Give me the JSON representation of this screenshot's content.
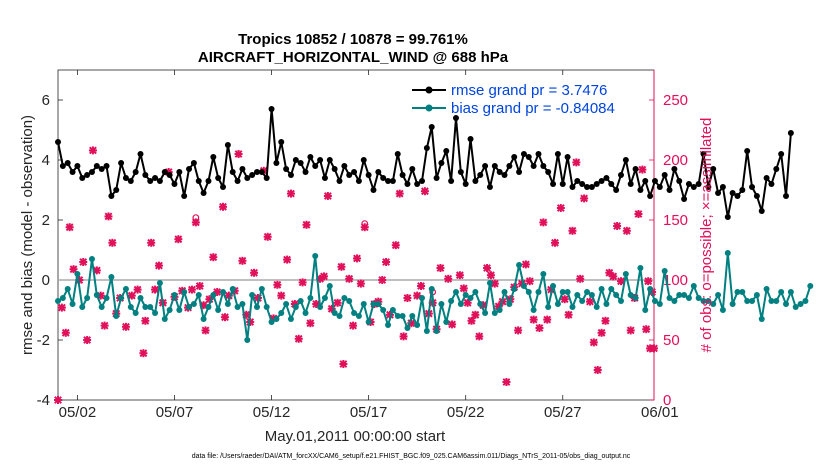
{
  "chart_data": {
    "type": "line",
    "title": "Tropics 10852 / 10878 = 99.761%",
    "subtitle": "AIRCRAFT_HORIZONTAL_WIND @ 688 hPa",
    "xlabel": "May.01,2011 00:00:00 start",
    "ylabel_left": "rmse and bias (model - observation)",
    "ylabel_right": "# of obs: o=possible; ×=assimilated",
    "xlim": [
      0.5,
      31.2
    ],
    "ylim_left": [
      -4,
      7
    ],
    "ylim_right": [
      0,
      275
    ],
    "x_ticks": [
      1.5,
      6.5,
      11.5,
      16.5,
      21.5,
      26.5,
      31.5
    ],
    "x_tick_labels": [
      "05/02",
      "05/07",
      "05/12",
      "05/17",
      "05/22",
      "05/27",
      "06/01"
    ],
    "y_ticks_left": [
      -4,
      -2,
      0,
      2,
      4,
      6
    ],
    "y_tick_labels_left": [
      "-4",
      "-2",
      "0",
      "2",
      "4",
      "6"
    ],
    "y_ticks_right": [
      0,
      50,
      100,
      150,
      200,
      250
    ],
    "y_tick_labels_right": [
      "0",
      "50",
      "100",
      "150",
      "200",
      "250"
    ],
    "footer": "data file: /Users/raeder/DAI/ATM_forcXX/CAM6_setup/f.e21.FHIST_BGC.f09_025.CAM6assim.011/Diags_NTrS_2011-05/obs_diag_output.nc",
    "series": [
      {
        "name": "rmse grand pr = 3.7476",
        "axis": "left",
        "color": "#000000",
        "x_start": 0.5,
        "x_step": 0.25,
        "values": [
          4.6,
          3.8,
          3.9,
          3.6,
          3.8,
          3.4,
          3.5,
          3.6,
          3.8,
          3.7,
          3.8,
          2.8,
          3.0,
          3.9,
          3.4,
          3.3,
          3.6,
          4.2,
          3.5,
          3.3,
          3.4,
          3.3,
          3.6,
          3.5,
          3.2,
          3.6,
          2.8,
          3.7,
          3.9,
          3.3,
          2.9,
          3.3,
          4.1,
          3.4,
          3.1,
          4.5,
          3.6,
          3.3,
          3.7,
          3.4,
          3.5,
          3.6,
          3.6,
          3.4,
          5.7,
          3.9,
          4.6,
          3.7,
          3.5,
          4.0,
          3.9,
          3.6,
          4.1,
          3.8,
          4.0,
          3.4,
          4.0,
          3.7,
          3.3,
          3.8,
          3.5,
          3.6,
          3.3,
          4.0,
          3.5,
          3.0,
          3.6,
          3.4,
          3.3,
          3.3,
          4.2,
          3.5,
          3.2,
          3.7,
          3.2,
          3.3,
          4.4,
          5.1,
          3.4,
          3.9,
          4.3,
          3.3,
          5.4,
          3.6,
          3.2,
          4.7,
          3.3,
          3.5,
          3.8,
          3.1,
          3.8,
          3.6,
          3.5,
          3.8,
          4.1,
          3.6,
          4.2,
          4.1,
          3.8,
          4.2,
          3.8,
          3.6,
          3.2,
          4.2,
          3.2,
          4.1,
          3.1,
          3.3,
          3.2,
          3.1,
          3.1,
          3.2,
          3.3,
          3.4,
          3.2,
          3.0,
          3.5,
          4.0,
          3.2,
          3.7,
          3.0,
          3.3,
          2.8,
          3.3,
          3.1,
          3.5,
          3.0,
          3.7,
          3.3,
          2.7,
          3.2,
          3.1,
          3.2,
          4.2,
          3.1,
          3.7,
          2.9,
          3.1,
          2.1,
          2.9,
          2.8,
          3.0,
          4.3,
          3.1,
          2.8,
          2.3,
          3.4,
          3.2,
          3.7,
          4.2,
          2.8,
          4.9
        ]
      },
      {
        "name": "bias grand pr = -0.84084",
        "axis": "left",
        "color": "#008080",
        "x_start": 0.5,
        "x_step": 0.25,
        "values": [
          -0.7,
          -0.6,
          -0.3,
          -0.8,
          0.2,
          -0.9,
          -0.6,
          0.7,
          -0.5,
          -0.9,
          -0.6,
          0.1,
          -1.2,
          -0.6,
          -0.3,
          -0.9,
          -1.1,
          -0.6,
          -0.9,
          -0.9,
          -1.1,
          -0.1,
          -1.3,
          -1.0,
          -0.5,
          -1.0,
          -0.4,
          -0.9,
          -0.8,
          -0.5,
          -1.3,
          -0.9,
          -0.5,
          -1.0,
          -0.4,
          -0.8,
          -0.3,
          -0.9,
          -0.8,
          -2.0,
          -0.5,
          -0.9,
          -0.3,
          -0.9,
          -1.4,
          -1.3,
          -1.1,
          -0.8,
          -1.3,
          -0.9,
          -0.7,
          -1.1,
          -0.6,
          0.8,
          -0.9,
          -0.6,
          -0.2,
          -1.1,
          -1.2,
          -0.6,
          -0.7,
          -1.1,
          -1.2,
          -0.8,
          -1.4,
          -0.8,
          -0.8,
          -1.0,
          -1.5,
          -1.0,
          -1.2,
          -1.2,
          -1.6,
          -1.2,
          -1.5,
          -0.6,
          -1.7,
          -0.3,
          -1.7,
          -0.8,
          -1.4,
          -0.7,
          -0.4,
          -0.8,
          -0.5,
          -0.6,
          -0.4,
          -0.8,
          -1.1,
          -0.1,
          -1.1,
          -1.0,
          -0.4,
          -0.8,
          -0.3,
          0.5,
          -0.2,
          -0.4,
          -1.0,
          -0.4,
          0.2,
          -0.9,
          -0.2,
          -0.8,
          -0.4,
          -0.4,
          -0.9,
          -0.5,
          -0.7,
          -0.4,
          -0.5,
          -0.9,
          -0.3,
          -0.8,
          -0.3,
          -0.5,
          -0.7,
          0.2,
          -0.5,
          -0.6,
          0.4,
          -1.0,
          -0.3,
          -0.7,
          -0.8,
          0.3,
          -0.6,
          -0.7,
          -0.5,
          -0.5,
          -0.6,
          -0.2,
          -0.6,
          -0.7,
          -0.7,
          -0.8,
          -0.5,
          -1.0,
          0.9,
          -0.8,
          -0.4,
          -0.4,
          -0.7,
          -0.7,
          -0.5,
          -1.3,
          -0.3,
          -0.7,
          -0.7,
          -0.4,
          -0.8,
          -0.4,
          -0.9,
          -0.8,
          -0.7,
          -0.2
        ]
      },
      {
        "name": "# of obs assimilated",
        "axis": "right",
        "color": "#e0105a",
        "marker": "x",
        "points": [
          [
            0.5,
            0
          ],
          [
            0.7,
            77
          ],
          [
            0.9,
            56
          ],
          [
            1.1,
            144
          ],
          [
            1.3,
            109
          ],
          [
            1.6,
            100
          ],
          [
            1.8,
            115
          ],
          [
            2.0,
            50
          ],
          [
            2.3,
            208
          ],
          [
            2.5,
            108
          ],
          [
            2.7,
            87
          ],
          [
            2.9,
            62
          ],
          [
            3.1,
            153
          ],
          [
            3.3,
            131
          ],
          [
            3.5,
            72
          ],
          [
            3.7,
            85
          ],
          [
            4.0,
            61
          ],
          [
            4.3,
            87
          ],
          [
            4.6,
            92
          ],
          [
            4.9,
            39
          ],
          [
            5.0,
            66
          ],
          [
            5.3,
            131
          ],
          [
            5.5,
            92
          ],
          [
            5.7,
            112
          ],
          [
            5.9,
            81
          ],
          [
            6.2,
            190
          ],
          [
            6.5,
            86
          ],
          [
            6.7,
            134
          ],
          [
            6.9,
            91
          ],
          [
            7.2,
            77
          ],
          [
            7.4,
            92
          ],
          [
            7.6,
            148
          ],
          [
            7.8,
            95
          ],
          [
            8.0,
            79
          ],
          [
            8.1,
            58
          ],
          [
            8.3,
            84
          ],
          [
            8.5,
            119
          ],
          [
            8.7,
            90
          ],
          [
            9.0,
            161
          ],
          [
            9.1,
            69
          ],
          [
            9.3,
            87
          ],
          [
            9.6,
            91
          ],
          [
            9.8,
            205
          ],
          [
            10.0,
            116
          ],
          [
            10.2,
            71
          ],
          [
            10.4,
            65
          ],
          [
            10.6,
            106
          ],
          [
            10.8,
            85
          ],
          [
            11.1,
            191
          ],
          [
            11.3,
            136
          ],
          [
            11.6,
            68
          ],
          [
            11.8,
            96
          ],
          [
            12.0,
            87
          ],
          [
            12.3,
            117
          ],
          [
            12.5,
            172
          ],
          [
            12.7,
            80
          ],
          [
            12.9,
            51
          ],
          [
            13.1,
            98
          ],
          [
            13.3,
            146
          ],
          [
            13.5,
            64
          ],
          [
            13.8,
            80
          ],
          [
            14.0,
            101
          ],
          [
            14.2,
            103
          ],
          [
            14.4,
            170
          ],
          [
            14.6,
            76
          ],
          [
            14.9,
            81
          ],
          [
            15.1,
            111
          ],
          [
            15.2,
            30
          ],
          [
            15.5,
            101
          ],
          [
            15.7,
            62
          ],
          [
            15.9,
            118
          ],
          [
            16.1,
            97
          ],
          [
            16.3,
            144
          ],
          [
            16.6,
            65
          ],
          [
            16.8,
            80
          ],
          [
            17.0,
            82
          ],
          [
            17.2,
            100
          ],
          [
            17.4,
            115
          ],
          [
            17.6,
            71
          ],
          [
            17.9,
            129
          ],
          [
            18.1,
            172
          ],
          [
            18.3,
            53
          ],
          [
            18.5,
            85
          ],
          [
            18.7,
            64
          ],
          [
            19.0,
            87
          ],
          [
            19.2,
            95
          ],
          [
            19.4,
            174
          ],
          [
            19.6,
            72
          ],
          [
            19.8,
            81
          ],
          [
            20.0,
            59
          ],
          [
            20.2,
            110
          ],
          [
            20.6,
            101
          ],
          [
            20.8,
            63
          ],
          [
            21.2,
            104
          ],
          [
            21.4,
            93
          ],
          [
            21.6,
            81
          ],
          [
            21.8,
            66
          ],
          [
            22.0,
            71
          ],
          [
            22.2,
            53
          ],
          [
            22.4,
            79
          ],
          [
            22.6,
            110
          ],
          [
            22.8,
            104
          ],
          [
            23.0,
            97
          ],
          [
            23.2,
            78
          ],
          [
            23.4,
            82
          ],
          [
            23.6,
            15
          ],
          [
            23.8,
            84
          ],
          [
            24.0,
            94
          ],
          [
            24.2,
            58
          ],
          [
            24.4,
            97
          ],
          [
            24.6,
            113
          ],
          [
            24.8,
            99
          ],
          [
            25.0,
            67
          ],
          [
            25.3,
            60
          ],
          [
            25.5,
            148
          ],
          [
            25.7,
            67
          ],
          [
            25.9,
            92
          ],
          [
            26.1,
            131
          ],
          [
            26.4,
            160
          ],
          [
            26.6,
            84
          ],
          [
            26.8,
            71
          ],
          [
            27.0,
            141
          ],
          [
            27.2,
            198
          ],
          [
            27.4,
            101
          ],
          [
            27.6,
            168
          ],
          [
            27.9,
            82
          ],
          [
            28.1,
            48
          ],
          [
            28.3,
            25
          ],
          [
            28.5,
            56
          ],
          [
            28.7,
            66
          ],
          [
            28.9,
            106
          ],
          [
            29.1,
            103
          ],
          [
            29.3,
            145
          ],
          [
            29.5,
            99
          ],
          [
            29.8,
            141
          ],
          [
            30.0,
            58
          ],
          [
            30.2,
            85
          ],
          [
            30.4,
            155
          ],
          [
            30.6,
            192
          ],
          [
            30.8,
            59
          ],
          [
            30.9,
            99
          ],
          [
            31.0,
            43
          ],
          [
            31.1,
            90
          ],
          [
            31.2,
            43
          ]
        ]
      },
      {
        "name": "# of obs possible",
        "axis": "right",
        "color": "#e0105a",
        "marker": "o",
        "points": [
          [
            7.6,
            152
          ],
          [
            16.3,
            147
          ],
          [
            19.8,
            90
          ]
        ]
      }
    ]
  }
}
